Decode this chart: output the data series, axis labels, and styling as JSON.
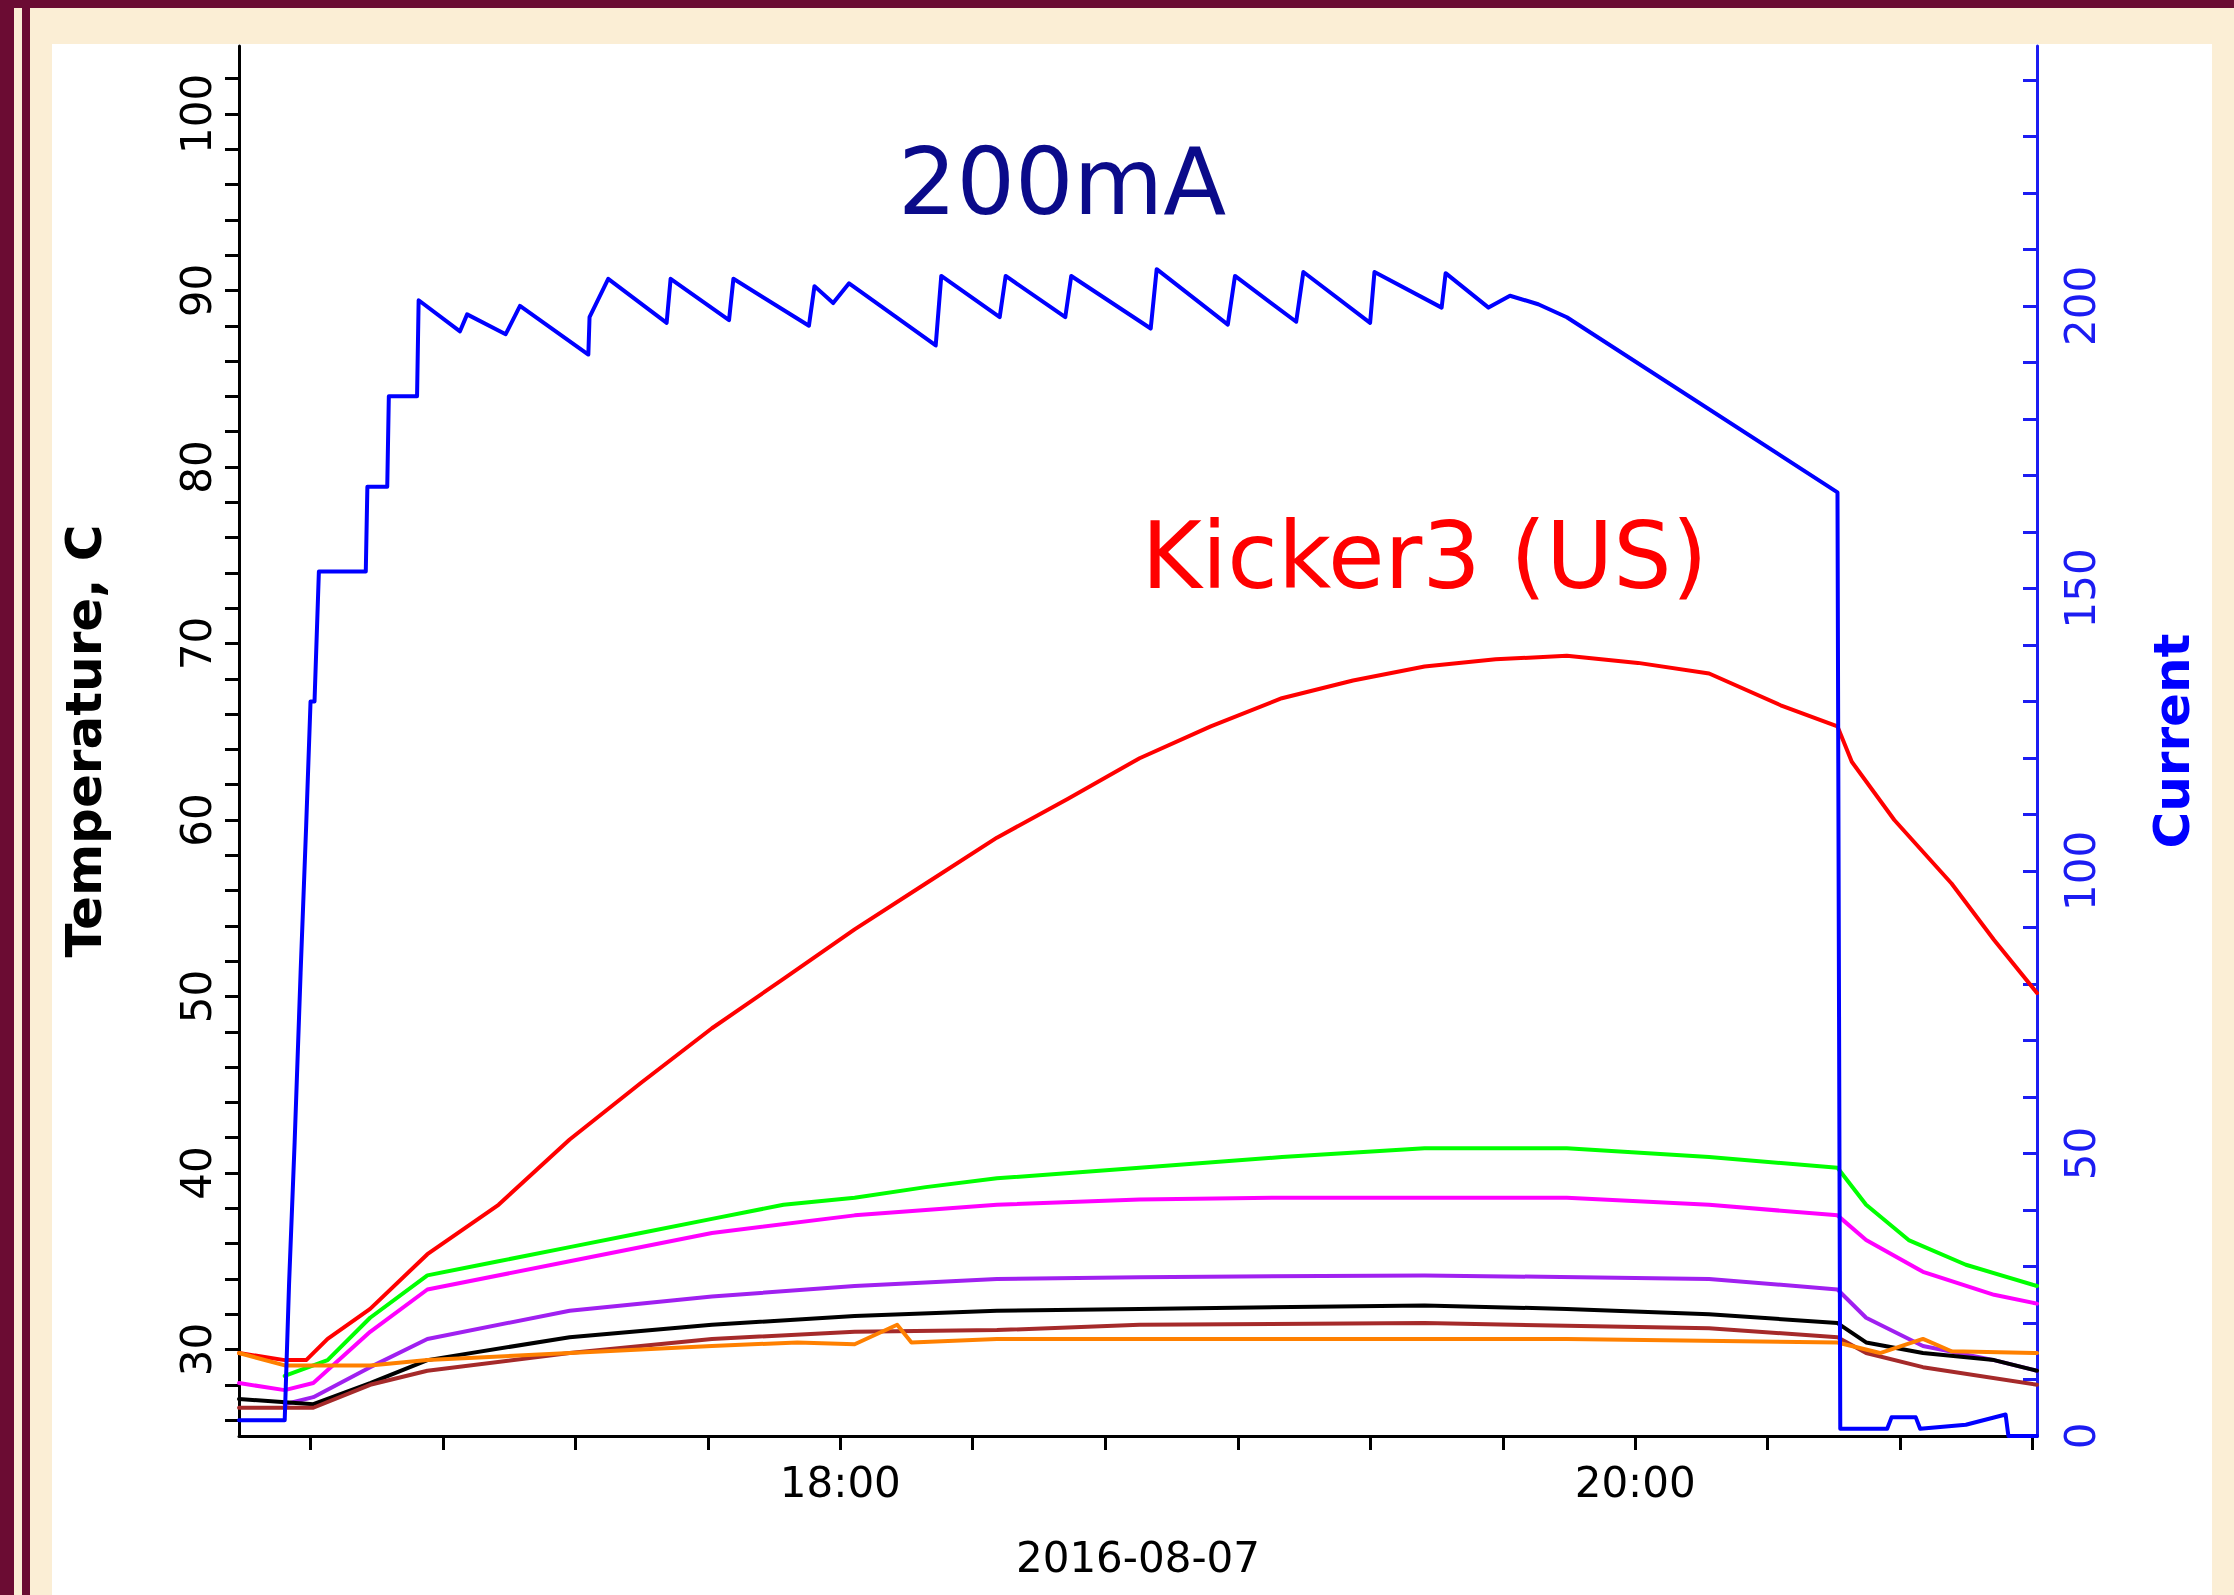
{
  "chart_data": {
    "type": "line",
    "xlabel": "2016-08-07",
    "ylabel": "Temperature, C",
    "y2label": "Current",
    "annotations": [
      "200mA"
    ],
    "xlim": [
      16.487,
      21.011
    ],
    "xticks": [
      {
        "value": 16.667,
        "label": null
      },
      {
        "value": 17,
        "label": null
      },
      {
        "value": 17.333,
        "label": null
      },
      {
        "value": 17.667,
        "label": null
      },
      {
        "value": 18,
        "label": "18:00"
      },
      {
        "value": 18.333,
        "label": null
      },
      {
        "value": 18.667,
        "label": null
      },
      {
        "value": 19,
        "label": null
      },
      {
        "value": 19.333,
        "label": null
      },
      {
        "value": 19.667,
        "label": null
      },
      {
        "value": 20,
        "label": "20:00"
      },
      {
        "value": 20.333,
        "label": null
      },
      {
        "value": 20.667,
        "label": null
      },
      {
        "value": 21,
        "label": null
      }
    ],
    "ylim": [
      25.1,
      103.85
    ],
    "yticks": [
      {
        "value": 26,
        "label": null
      },
      {
        "value": 28,
        "label": null
      },
      30,
      {
        "value": 32,
        "label": null
      },
      {
        "value": 34,
        "label": null
      },
      {
        "value": 36,
        "label": null
      },
      {
        "value": 38,
        "label": null
      },
      40,
      {
        "value": 42,
        "label": null
      },
      {
        "value": 44,
        "label": null
      },
      {
        "value": 46,
        "label": null
      },
      {
        "value": 48,
        "label": null
      },
      50,
      {
        "value": 52,
        "label": null
      },
      {
        "value": 54,
        "label": null
      },
      {
        "value": 56,
        "label": null
      },
      {
        "value": 58,
        "label": null
      },
      60,
      {
        "value": 62,
        "label": null
      },
      {
        "value": 64,
        "label": null
      },
      {
        "value": 66,
        "label": null
      },
      {
        "value": 68,
        "label": null
      },
      70,
      {
        "value": 72,
        "label": null
      },
      {
        "value": 74,
        "label": null
      },
      {
        "value": 76,
        "label": null
      },
      {
        "value": 78,
        "label": null
      },
      80,
      {
        "value": 82,
        "label": null
      },
      {
        "value": 84,
        "label": null
      },
      {
        "value": 86,
        "label": null
      },
      {
        "value": 88,
        "label": null
      },
      90,
      {
        "value": 92,
        "label": null
      },
      {
        "value": 94,
        "label": null
      },
      {
        "value": 96,
        "label": null
      },
      {
        "value": 98,
        "label": null
      },
      100,
      {
        "value": 102,
        "label": null
      }
    ],
    "y2lim": [
      0,
      246
    ],
    "y2ticks": [
      0,
      {
        "value": 10,
        "label": null
      },
      {
        "value": 20,
        "label": null
      },
      {
        "value": 30,
        "label": null
      },
      {
        "value": 40,
        "label": null
      },
      50,
      {
        "value": 60,
        "label": null
      },
      {
        "value": 70,
        "label": null
      },
      {
        "value": 80,
        "label": null
      },
      {
        "value": 90,
        "label": null
      },
      100,
      {
        "value": 110,
        "label": null
      },
      {
        "value": 120,
        "label": null
      },
      {
        "value": 130,
        "label": null
      },
      {
        "value": 140,
        "label": null
      },
      150,
      {
        "value": 160,
        "label": null
      },
      {
        "value": 170,
        "label": null
      },
      {
        "value": 180,
        "label": null
      },
      {
        "value": 190,
        "label": null
      },
      200,
      {
        "value": 210,
        "label": null
      },
      {
        "value": 220,
        "label": null
      },
      {
        "value": 230,
        "label": null
      },
      {
        "value": 240,
        "label": null
      }
    ],
    "grid": false,
    "legend": false,
    "marker": "none",
    "line_style": "solid",
    "series": [
      {
        "name": "Kicker3 (US)",
        "color": "#ff0000",
        "x": [
          16.487,
          16.602,
          16.656,
          16.71,
          16.817,
          16.961,
          17.14,
          17.319,
          17.498,
          17.677,
          17.857,
          18.036,
          18.215,
          18.394,
          18.573,
          18.753,
          18.932,
          19.111,
          19.29,
          19.47,
          19.649,
          19.828,
          20.007,
          20.186,
          20.366,
          20.509,
          20.545,
          20.652,
          20.796,
          20.903,
          21.011
        ],
        "values": [
          29.8,
          29.4,
          29.4,
          30.6,
          32.3,
          35.4,
          38.2,
          41.9,
          45.1,
          48.2,
          51.0,
          53.8,
          56.4,
          59.0,
          61.2,
          63.5,
          65.3,
          66.9,
          67.9,
          68.7,
          69.1,
          69.3,
          68.9,
          68.3,
          66.5,
          65.3,
          63.3,
          60.0,
          56.4,
          53.2,
          50.2
        ]
      },
      {
        "color": "#00ff00",
        "x": [
          16.602,
          16.71,
          16.817,
          16.961,
          17.14,
          17.319,
          17.498,
          17.677,
          17.857,
          18.036,
          18.215,
          18.394,
          18.753,
          19.111,
          19.47,
          19.828,
          20.186,
          20.509,
          20.581,
          20.688,
          20.832,
          21.011
        ],
        "values": [
          28.5,
          29.4,
          31.8,
          34.2,
          35.0,
          35.8,
          36.6,
          37.4,
          38.2,
          38.6,
          39.2,
          39.7,
          40.3,
          40.9,
          41.4,
          41.4,
          40.9,
          40.3,
          38.2,
          36.2,
          34.8,
          33.6
        ]
      },
      {
        "color": "#ff00ff",
        "x": [
          16.487,
          16.602,
          16.674,
          16.817,
          16.961,
          17.319,
          17.677,
          18.036,
          18.394,
          18.753,
          19.111,
          19.828,
          20.186,
          20.509,
          20.581,
          20.724,
          20.903,
          21.011
        ],
        "values": [
          28.1,
          27.7,
          28.1,
          31.0,
          33.4,
          35.0,
          36.6,
          37.6,
          38.2,
          38.5,
          38.6,
          38.6,
          38.2,
          37.6,
          36.2,
          34.4,
          33.1,
          32.6
        ]
      },
      {
        "color": "#a020f0",
        "x": [
          16.602,
          16.674,
          16.817,
          16.961,
          17.319,
          17.677,
          18.036,
          18.394,
          18.753,
          19.47,
          20.186,
          20.509,
          20.581,
          20.724,
          20.903,
          21.011
        ],
        "values": [
          26.9,
          27.3,
          29.0,
          30.6,
          32.2,
          33.0,
          33.6,
          34.0,
          34.1,
          34.2,
          34.0,
          33.4,
          31.8,
          30.2,
          29.4,
          28.8
        ]
      },
      {
        "color": "#000000",
        "x": [
          16.487,
          16.674,
          16.817,
          16.961,
          17.319,
          17.677,
          18.036,
          18.394,
          18.753,
          19.47,
          19.828,
          20.186,
          20.509,
          20.581,
          20.724,
          20.903,
          21.011
        ],
        "values": [
          27.2,
          26.9,
          28.1,
          29.4,
          30.7,
          31.4,
          31.9,
          32.2,
          32.3,
          32.5,
          32.3,
          32.0,
          31.5,
          30.4,
          29.8,
          29.4,
          28.8
        ]
      },
      {
        "color": "#a52a2a",
        "x": [
          16.487,
          16.674,
          16.817,
          16.961,
          17.319,
          17.677,
          18.036,
          18.394,
          18.753,
          19.47,
          20.186,
          20.509,
          20.581,
          20.724,
          21.011
        ],
        "values": [
          26.7,
          26.7,
          28.0,
          28.8,
          29.8,
          30.6,
          31.0,
          31.1,
          31.4,
          31.5,
          31.2,
          30.7,
          29.8,
          29.0,
          28.0
        ]
      },
      {
        "color": "#ff8000",
        "x": [
          16.487,
          16.602,
          16.817,
          16.961,
          17.319,
          17.677,
          17.892,
          18.036,
          18.143,
          18.179,
          18.394,
          19.111,
          19.828,
          20.509,
          20.616,
          20.724,
          20.796,
          21.011
        ],
        "values": [
          29.8,
          29.1,
          29.1,
          29.4,
          29.8,
          30.2,
          30.4,
          30.3,
          31.4,
          30.4,
          30.6,
          30.6,
          30.6,
          30.4,
          29.8,
          30.6,
          29.9,
          29.8
        ]
      },
      {
        "color": "#0000ff",
        "axis": "y2",
        "x": [
          16.487,
          16.602,
          16.613,
          16.627,
          16.642,
          16.656,
          16.667,
          16.677,
          16.688,
          16.746,
          16.756,
          16.806,
          16.81,
          16.86,
          16.864,
          16.935,
          16.939,
          17.043,
          17.061,
          17.158,
          17.194,
          17.366,
          17.369,
          17.416,
          17.563,
          17.573,
          17.72,
          17.731,
          17.921,
          17.935,
          17.982,
          18.022,
          18.24,
          18.254,
          18.401,
          18.416,
          18.566,
          18.581,
          18.781,
          18.796,
          18.975,
          18.993,
          19.147,
          19.165,
          19.333,
          19.344,
          19.513,
          19.523,
          19.631,
          19.685,
          19.756,
          19.828,
          20.509,
          20.516,
          20.545,
          20.634,
          20.645,
          20.706,
          20.717,
          20.832,
          20.932,
          20.939,
          21.011
        ],
        "values": [
          2.8,
          2.8,
          27,
          52,
          82,
          108,
          130,
          130,
          153,
          153,
          153,
          153,
          168,
          168,
          184,
          184,
          201,
          195.5,
          198.5,
          195,
          200,
          191.4,
          198,
          204.8,
          197,
          204.8,
          197.5,
          204.8,
          196.5,
          203.5,
          200.5,
          204,
          193,
          205.3,
          198,
          205.3,
          198,
          205.3,
          196,
          206.5,
          196.7,
          205.3,
          197.2,
          206,
          197,
          206,
          199.7,
          205.8,
          199.7,
          201.8,
          200.3,
          198,
          167,
          1.3,
          1.3,
          1.3,
          3.3,
          3.3,
          1.3,
          2,
          3.8,
          0,
          0
        ]
      }
    ]
  }
}
